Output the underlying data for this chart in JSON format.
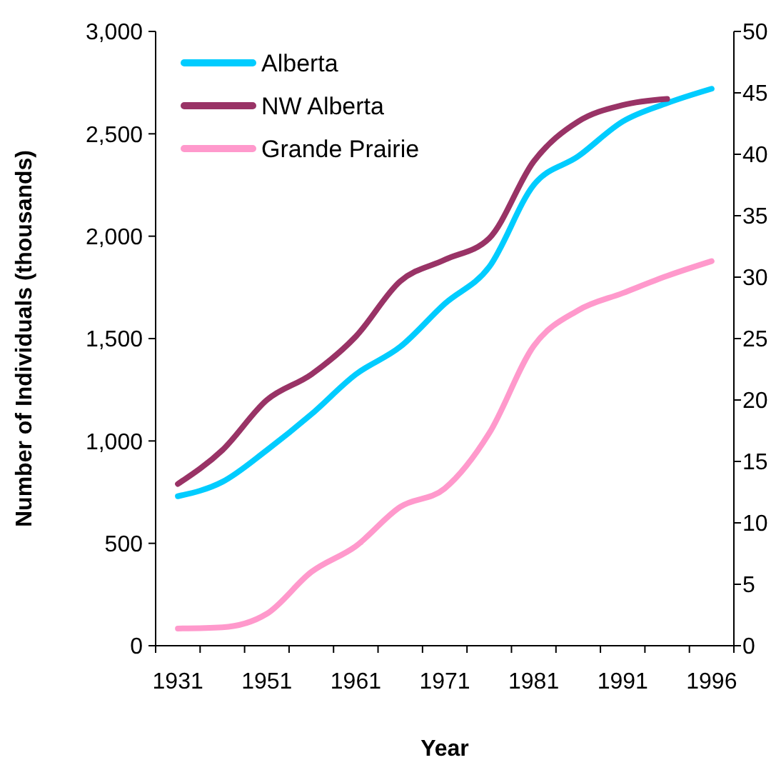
{
  "chart_data": {
    "type": "line",
    "xlabel": "Year",
    "ylabel": "Number of Individuals (thousands)",
    "categories": [
      "1931",
      null,
      "1951",
      null,
      "1961",
      null,
      "1971",
      null,
      "1981",
      null,
      "1991",
      null,
      "1996"
    ],
    "ylim": [
      0,
      3000
    ],
    "yticks": [
      {
        "value": 0,
        "label": "0"
      },
      {
        "value": 500,
        "label": "500"
      },
      {
        "value": 1000,
        "label": "1,000"
      },
      {
        "value": 1500,
        "label": "1,500"
      },
      {
        "value": 2000,
        "label": "2,000"
      },
      {
        "value": 2500,
        "label": "2,500"
      },
      {
        "value": 3000,
        "label": "3,000"
      }
    ],
    "y2lim": [
      0,
      50
    ],
    "y2ticks": [
      0,
      5,
      10,
      15,
      20,
      25,
      30,
      35,
      40,
      45,
      50
    ],
    "grid": false,
    "legend": "top left",
    "line_style": "solid",
    "series": [
      {
        "name": "Alberta",
        "color": "#00ccff",
        "values": [
          730,
          800,
          955,
          1130,
          1325,
          1460,
          1670,
          1850,
          2250,
          2390,
          2560,
          2650,
          2720
        ]
      },
      {
        "name": "NW Alberta",
        "color": "#993366",
        "values": [
          790,
          955,
          1200,
          1325,
          1510,
          1780,
          1885,
          1990,
          2365,
          2560,
          2640,
          2670,
          null
        ]
      },
      {
        "name": "Grande Prairie",
        "color": "#ff99cc",
        "axis": "y2",
        "values": [
          1.4,
          1.5,
          2.6,
          6.0,
          8.1,
          11.3,
          12.8,
          17.3,
          24.4,
          27.3,
          28.7,
          30.1,
          31.3
        ]
      }
    ]
  }
}
